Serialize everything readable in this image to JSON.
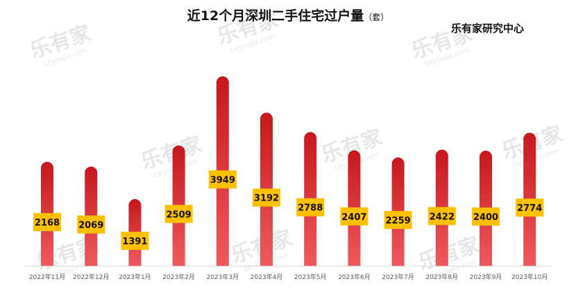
{
  "header": {
    "title": "近12个月深圳二手住宅过户量",
    "unit": "（套）",
    "source": "乐有家研究中心"
  },
  "watermark": {
    "text": "乐有家",
    "subtext": "Leyoujia.com"
  },
  "colors": {
    "bar_top": "#c5181d",
    "bar_bottom": "#ee5a5e",
    "label_bg": "#ffc000",
    "axis": "#d9d9d9",
    "tick_text": "#595959",
    "watermark": "#e6e6e6"
  },
  "chart_data": {
    "type": "bar",
    "title": "近12个月深圳二手住宅过户量（套）",
    "categories": [
      "2022年11月",
      "2022年12月",
      "2023年1月",
      "2023年2月",
      "2023年3月",
      "2023年4月",
      "2023年5月",
      "2023年6月",
      "2023年7月",
      "2023年8月",
      "2023年9月",
      "2023年10月"
    ],
    "values": [
      2168,
      2069,
      1391,
      2509,
      3949,
      3192,
      2788,
      2407,
      2259,
      2422,
      2400,
      2774
    ],
    "ylim": [
      0,
      3949
    ],
    "grid": false,
    "data_labels": true
  }
}
